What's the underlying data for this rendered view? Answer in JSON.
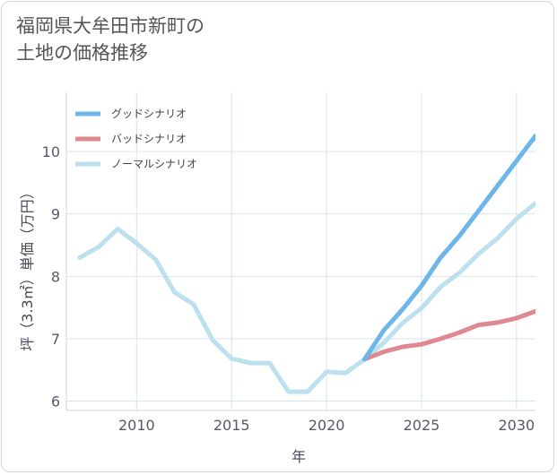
{
  "title_lines": [
    "福岡県大牟田市新町の",
    "土地の価格推移"
  ],
  "chart_data": {
    "type": "line",
    "title": "福岡県大牟田市新町の土地の価格推移",
    "xlabel": "年",
    "ylabel": "坪（3.3㎡）単価（万円）",
    "xlim": [
      2006.3,
      2031
    ],
    "ylim": [
      5.85,
      10.95
    ],
    "xticks": [
      2010,
      2015,
      2020,
      2025,
      2030
    ],
    "yticks": [
      6,
      7,
      8,
      9,
      10
    ],
    "grid": true,
    "legend_position": "top-left",
    "series": [
      {
        "name": "グッドシナリオ",
        "color": "#6cb6ea",
        "x": [
          2022,
          2023,
          2024,
          2025,
          2026,
          2027,
          2028,
          2029,
          2030,
          2031
        ],
        "values": [
          6.67,
          7.13,
          7.47,
          7.85,
          8.3,
          8.65,
          9.05,
          9.45,
          9.85,
          10.25
        ]
      },
      {
        "name": "バッドシナリオ",
        "color": "#e08890",
        "x": [
          2022,
          2023,
          2024,
          2025,
          2026,
          2027,
          2028,
          2029,
          2030,
          2031
        ],
        "values": [
          6.67,
          6.79,
          6.87,
          6.91,
          7.0,
          7.1,
          7.22,
          7.26,
          7.33,
          7.44
        ]
      },
      {
        "name": "ノーマルシナリオ",
        "color": "#bde0ee",
        "x": [
          2007,
          2008,
          2009,
          2010,
          2011,
          2012,
          2013,
          2014,
          2015,
          2016,
          2017,
          2018,
          2019,
          2020,
          2021,
          2022,
          2023,
          2024,
          2025,
          2026,
          2027,
          2028,
          2029,
          2030,
          2031
        ],
        "values": [
          8.3,
          8.47,
          8.76,
          8.53,
          8.27,
          7.74,
          7.55,
          6.98,
          6.68,
          6.61,
          6.61,
          6.15,
          6.15,
          6.47,
          6.45,
          6.67,
          6.93,
          7.25,
          7.49,
          7.83,
          8.06,
          8.36,
          8.61,
          8.92,
          9.17
        ]
      }
    ]
  }
}
